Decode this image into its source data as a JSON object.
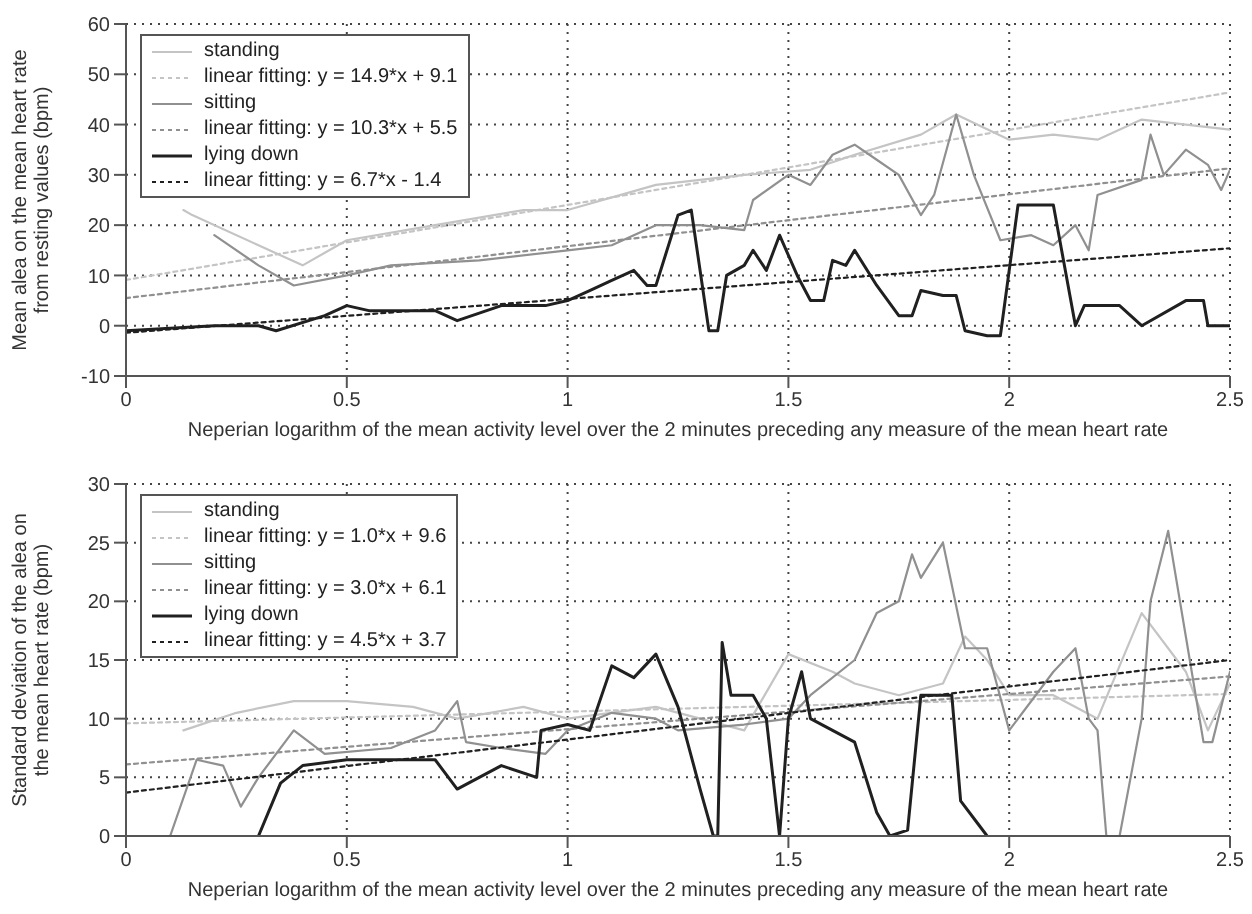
{
  "chart_data": [
    {
      "type": "line",
      "xlabel": "Neperian logarithm of the mean activity level over the 2 minutes preceding any measure of the mean heart rate",
      "ylabel": "Mean alea on the mean heart rate from resting values (bpm)",
      "xlim": [
        0,
        2.5
      ],
      "xticks": [
        0,
        0.5,
        1,
        1.5,
        2,
        2.5
      ],
      "ylim": [
        -10,
        60
      ],
      "yticks": [
        -10,
        0,
        10,
        20,
        30,
        40,
        50,
        60
      ],
      "grid": true,
      "legend": "top left",
      "marker": "none",
      "series": [
        {
          "name": "standing",
          "color": "#c4c4c4",
          "line_style": "solid",
          "x": [
            0.13,
            0.15,
            0.3,
            0.4,
            0.5,
            0.7,
            0.9,
            1.0,
            1.2,
            1.4,
            1.55,
            1.65,
            1.8,
            1.88,
            2.0,
            2.1,
            2.2,
            2.3,
            2.4,
            2.5
          ],
          "values": [
            23,
            22,
            16,
            12,
            17,
            20,
            23,
            23,
            28,
            30,
            31,
            34,
            38,
            42,
            37,
            38,
            37,
            41,
            40,
            39
          ]
        },
        {
          "name": "linear fitting: y = 14.9*x + 9.1",
          "color": "#c4c4c4",
          "line_style": "dotted",
          "x": [
            0,
            2.5
          ],
          "values": [
            9.1,
            46.4
          ]
        },
        {
          "name": "sitting",
          "color": "#909090",
          "line_style": "solid",
          "x": [
            0.2,
            0.3,
            0.38,
            0.5,
            0.6,
            0.8,
            1.0,
            1.1,
            1.2,
            1.3,
            1.4,
            1.42,
            1.5,
            1.55,
            1.6,
            1.65,
            1.7,
            1.75,
            1.8,
            1.83,
            1.88,
            1.92,
            1.98,
            2.05,
            2.1,
            2.15,
            2.18,
            2.2,
            2.3,
            2.32,
            2.35,
            2.4,
            2.45,
            2.48,
            2.5
          ],
          "values": [
            18,
            12,
            8,
            10,
            12,
            13,
            15,
            16,
            20,
            20,
            19,
            25,
            30,
            28,
            34,
            36,
            33,
            30,
            22,
            26,
            42,
            30,
            17,
            18,
            16,
            20,
            15,
            26,
            29,
            38,
            30,
            35,
            32,
            27,
            31
          ]
        },
        {
          "name": "linear fitting: y = 10.3*x + 5.5",
          "color": "#909090",
          "line_style": "dotted",
          "x": [
            0,
            2.5
          ],
          "values": [
            5.5,
            31.3
          ]
        },
        {
          "name": "lying down",
          "color": "#202020",
          "line_style": "solid",
          "x": [
            0,
            0.2,
            0.3,
            0.34,
            0.45,
            0.5,
            0.55,
            0.7,
            0.75,
            0.85,
            0.95,
            1.0,
            1.05,
            1.1,
            1.15,
            1.18,
            1.2,
            1.25,
            1.28,
            1.32,
            1.34,
            1.36,
            1.4,
            1.42,
            1.45,
            1.48,
            1.52,
            1.55,
            1.58,
            1.6,
            1.63,
            1.65,
            1.7,
            1.75,
            1.78,
            1.8,
            1.85,
            1.88,
            1.9,
            1.95,
            1.98,
            2.02,
            2.1,
            2.15,
            2.17,
            2.25,
            2.3,
            2.4,
            2.44,
            2.45,
            2.5
          ],
          "values": [
            -1,
            0,
            0,
            -1,
            2,
            4,
            3,
            3,
            1,
            4,
            4,
            5,
            7,
            9,
            11,
            8,
            8,
            22,
            23,
            -1,
            -1,
            10,
            12,
            15,
            11,
            18,
            10,
            5,
            5,
            13,
            12,
            15,
            8,
            2,
            2,
            7,
            6,
            6,
            -1,
            -2,
            -2,
            24,
            24,
            0,
            4,
            4,
            0,
            5,
            5,
            0,
            0
          ]
        },
        {
          "name": "linear fitting: y = 6.7*x - 1.4",
          "color": "#202020",
          "line_style": "dotted",
          "x": [
            0,
            2.5
          ],
          "values": [
            -1.4,
            15.4
          ]
        }
      ]
    },
    {
      "type": "line",
      "xlabel": "Neperian logarithm of the mean activity level over the 2 minutes preceding any measure of the mean heart rate",
      "ylabel": "Standard deviation of the alea on the mean heart rate (bpm)",
      "xlim": [
        0,
        2.5
      ],
      "xticks": [
        0,
        0.5,
        1,
        1.5,
        2,
        2.5
      ],
      "ylim": [
        0,
        30
      ],
      "yticks": [
        0,
        5,
        10,
        15,
        20,
        25,
        30
      ],
      "grid": true,
      "legend": "top left",
      "marker": "none",
      "series": [
        {
          "name": "standing",
          "color": "#c4c4c4",
          "line_style": "solid",
          "x": [
            0.13,
            0.25,
            0.38,
            0.5,
            0.65,
            0.75,
            0.9,
            1.0,
            1.2,
            1.3,
            1.4,
            1.5,
            1.6,
            1.65,
            1.75,
            1.85,
            1.9,
            1.95,
            2.0,
            2.1,
            2.2,
            2.3,
            2.4,
            2.45,
            2.5
          ],
          "values": [
            9,
            10.5,
            11.5,
            11.5,
            11,
            10,
            11,
            10,
            11,
            10,
            9,
            15.5,
            14,
            13,
            12,
            13,
            17,
            15,
            12,
            12,
            10,
            19,
            14,
            9,
            13
          ]
        },
        {
          "name": "linear fitting: y = 1.0*x + 9.6",
          "color": "#c4c4c4",
          "line_style": "dotted",
          "x": [
            0,
            2.5
          ],
          "values": [
            9.6,
            12.1
          ]
        },
        {
          "name": "sitting",
          "color": "#909090",
          "line_style": "solid",
          "x": [
            0.1,
            0.16,
            0.22,
            0.26,
            0.3,
            0.38,
            0.45,
            0.6,
            0.7,
            0.75,
            0.77,
            0.85,
            0.95,
            1.0,
            1.1,
            1.2,
            1.25,
            1.4,
            1.5,
            1.55,
            1.65,
            1.7,
            1.75,
            1.78,
            1.8,
            1.85,
            1.9,
            1.95,
            2.0,
            2.1,
            2.15,
            2.18,
            2.2,
            2.22,
            2.25,
            2.3,
            2.32,
            2.36,
            2.4,
            2.44,
            2.46,
            2.5
          ],
          "values": [
            0,
            6.5,
            6,
            2.5,
            5,
            9,
            7,
            7.5,
            9,
            11.5,
            8,
            7.5,
            7,
            9,
            10.5,
            10,
            9,
            9.5,
            10,
            12,
            15,
            19,
            20,
            24,
            22,
            25,
            16,
            16,
            9,
            14,
            16,
            10,
            9,
            0,
            0,
            10,
            20,
            26,
            17,
            8,
            8,
            14
          ]
        },
        {
          "name": "linear fitting: y = 3.0*x + 6.1",
          "color": "#909090",
          "line_style": "dotted",
          "x": [
            0,
            2.5
          ],
          "values": [
            6.1,
            13.6
          ]
        },
        {
          "name": "lying down",
          "color": "#202020",
          "line_style": "solid",
          "x": [
            0.3,
            0.35,
            0.4,
            0.5,
            0.6,
            0.7,
            0.75,
            0.8,
            0.85,
            0.93,
            0.94,
            1.0,
            1.05,
            1.1,
            1.15,
            1.2,
            1.25,
            1.3,
            1.33,
            1.34,
            1.35,
            1.37,
            1.42,
            1.45,
            1.48,
            1.5,
            1.53,
            1.55,
            1.6,
            1.65,
            1.7,
            1.73,
            1.77,
            1.8,
            1.87,
            1.89,
            1.93,
            1.95
          ],
          "values": [
            0,
            4.5,
            6,
            6.5,
            6.5,
            6.5,
            4,
            5,
            6,
            5,
            9,
            9.5,
            9,
            14.5,
            13.5,
            15.5,
            11,
            4,
            0,
            0,
            16.5,
            12,
            12,
            10,
            0,
            10,
            14,
            10,
            9,
            8,
            2,
            0,
            0.5,
            12,
            12,
            3,
            1,
            0
          ]
        },
        {
          "name": "linear fitting: y = 4.5*x + 3.7",
          "color": "#202020",
          "line_style": "dotted",
          "x": [
            0,
            2.5
          ],
          "values": [
            3.7,
            15.0
          ]
        }
      ]
    }
  ]
}
